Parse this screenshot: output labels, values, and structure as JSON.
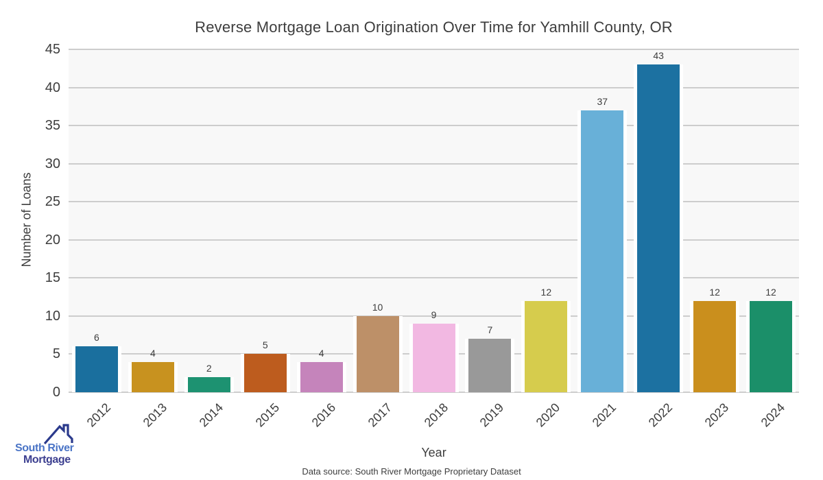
{
  "chart_data": {
    "type": "bar",
    "title": "Reverse Mortgage Loan Origination Over Time for Yamhill County, OR",
    "xlabel": "Year",
    "ylabel": "Number of Loans",
    "categories": [
      "2012",
      "2013",
      "2014",
      "2015",
      "2016",
      "2017",
      "2018",
      "2019",
      "2020",
      "2021",
      "2022",
      "2023",
      "2024"
    ],
    "values": [
      6,
      4,
      2,
      5,
      4,
      10,
      9,
      7,
      12,
      37,
      43,
      12,
      12
    ],
    "bar_colors": [
      "#1a6f9e",
      "#c8921f",
      "#1d9271",
      "#bd5c1e",
      "#c584bb",
      "#bd9068",
      "#f2b8e2",
      "#999999",
      "#d6cc4d",
      "#68b0d8",
      "#1c71a1",
      "#ca8f1d",
      "#1b8f69"
    ],
    "ylim": [
      0,
      45
    ],
    "yticks": [
      0,
      5,
      10,
      15,
      20,
      25,
      30,
      35,
      40,
      45
    ],
    "grid": "horizontal",
    "legend": "none",
    "plot_background": "#f8f8f8",
    "grid_color": "#cdcdcd",
    "text_color": "#3d3d3d"
  },
  "footer": {
    "source_text": "Data source: South River Mortgage Proprietary Dataset"
  },
  "logo": {
    "line1": "South River",
    "line2": "Mortgage",
    "line1_color": "#4a74c6",
    "line2_color": "#3c3f90",
    "roof_color": "#2b3a8c"
  }
}
